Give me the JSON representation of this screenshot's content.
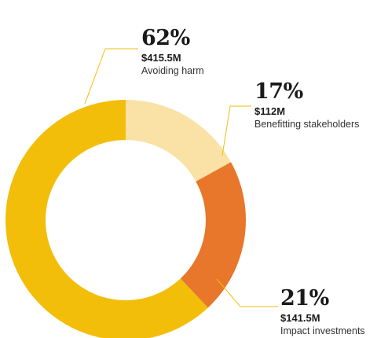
{
  "chart_data": {
    "type": "pie",
    "donut": true,
    "slices": [
      {
        "label": "Avoiding harm",
        "percent": 62,
        "amount": "$415.5M",
        "percent_label": "62%",
        "color": "#F2BE0A"
      },
      {
        "label": "Benefitting stakeholders",
        "percent": 17,
        "amount": "$112M",
        "percent_label": "17%",
        "color": "#FAE1A5"
      },
      {
        "label": "Impact investments",
        "percent": 21,
        "amount": "$141.5M",
        "percent_label": "21%",
        "color": "#E8762B"
      }
    ],
    "leader_line_color": "#F2BE0A"
  }
}
